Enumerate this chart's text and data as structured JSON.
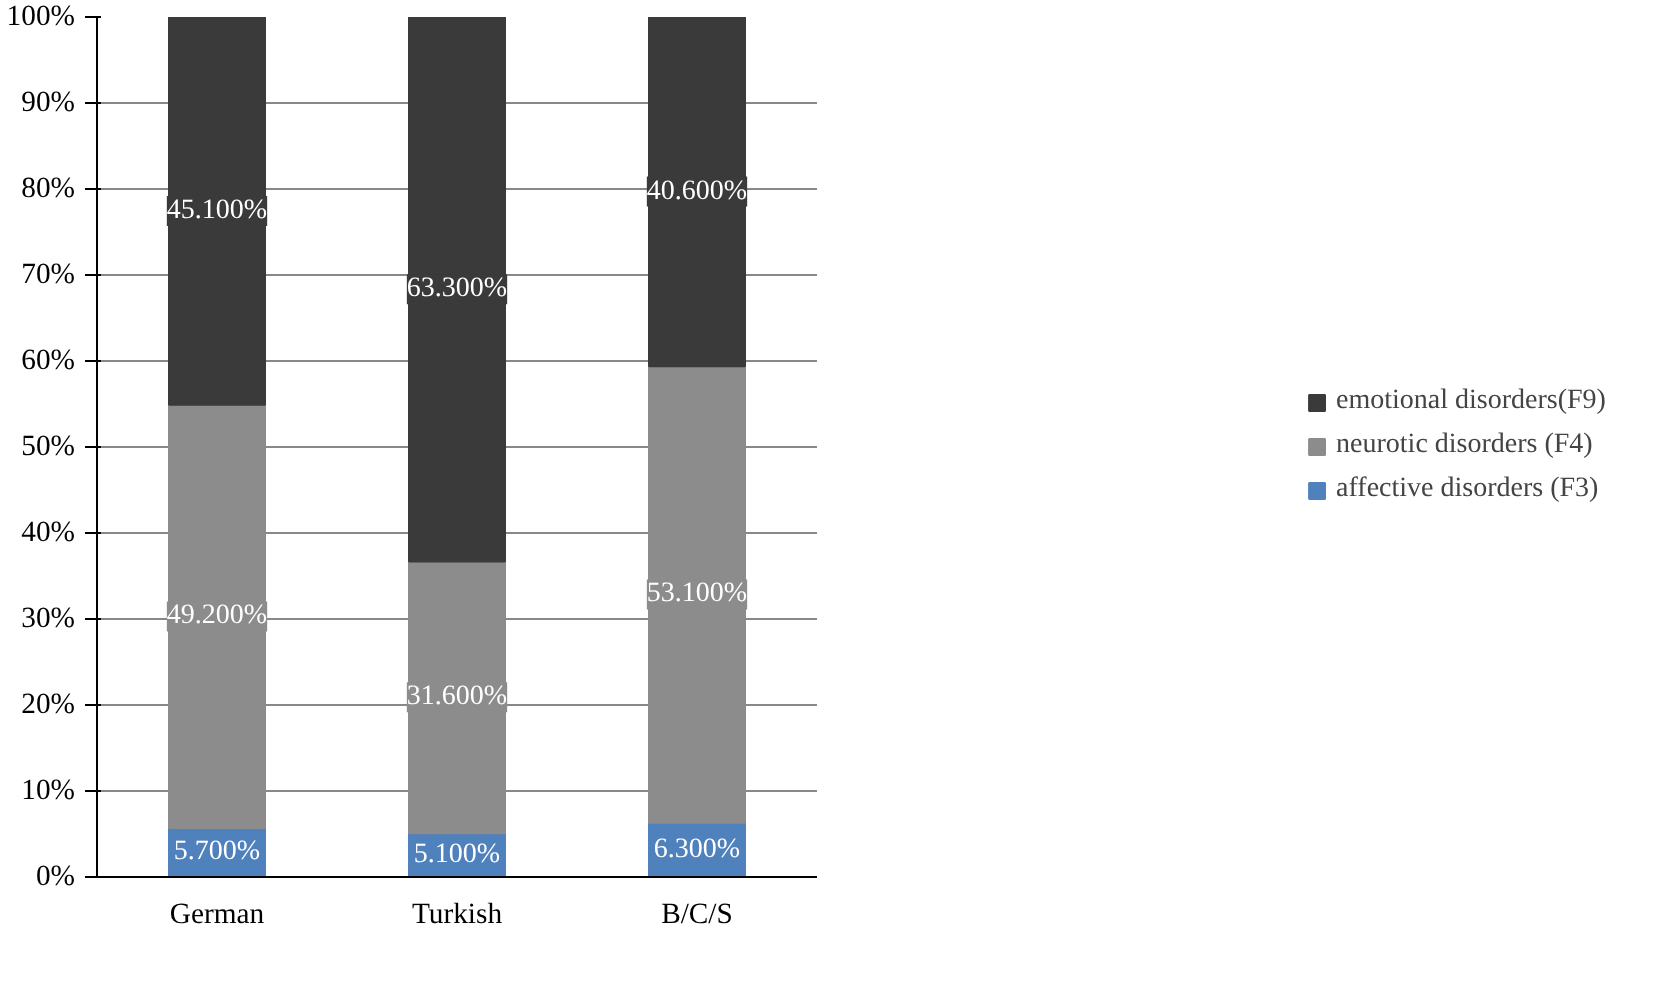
{
  "chart_data": {
    "type": "bar",
    "stacked": true,
    "categories": [
      "German",
      "Turkish",
      "B/C/S"
    ],
    "series": [
      {
        "name": "affective disorders (F3)",
        "color": "#4f81bd",
        "values": [
          5.7,
          5.1,
          6.3
        ],
        "value_labels": [
          "5.700%",
          "5.100%",
          "6.300%"
        ]
      },
      {
        "name": "neurotic disorders (F4)",
        "color": "#8c8c8c",
        "values": [
          49.2,
          31.6,
          53.1
        ],
        "value_labels": [
          "49.200%",
          "31.600%",
          "53.100%"
        ]
      },
      {
        "name": "emotional disorders(F9)",
        "color": "#3a3a3a",
        "values": [
          45.1,
          63.3,
          40.6
        ],
        "value_labels": [
          "45.100%",
          "63.300%",
          "40.600%"
        ]
      }
    ],
    "ylim": [
      0,
      100
    ],
    "yticks": [
      {
        "value": 0,
        "label": "0%"
      },
      {
        "value": 10,
        "label": "10%"
      },
      {
        "value": 20,
        "label": "20%"
      },
      {
        "value": 30,
        "label": "30%"
      },
      {
        "value": 40,
        "label": "40%"
      },
      {
        "value": 50,
        "label": "50%"
      },
      {
        "value": 60,
        "label": "60%"
      },
      {
        "value": 70,
        "label": "70%"
      },
      {
        "value": 80,
        "label": "80%"
      },
      {
        "value": 90,
        "label": "90%"
      },
      {
        "value": 100,
        "label": "100%"
      }
    ],
    "grid": "y",
    "legend": "right"
  }
}
